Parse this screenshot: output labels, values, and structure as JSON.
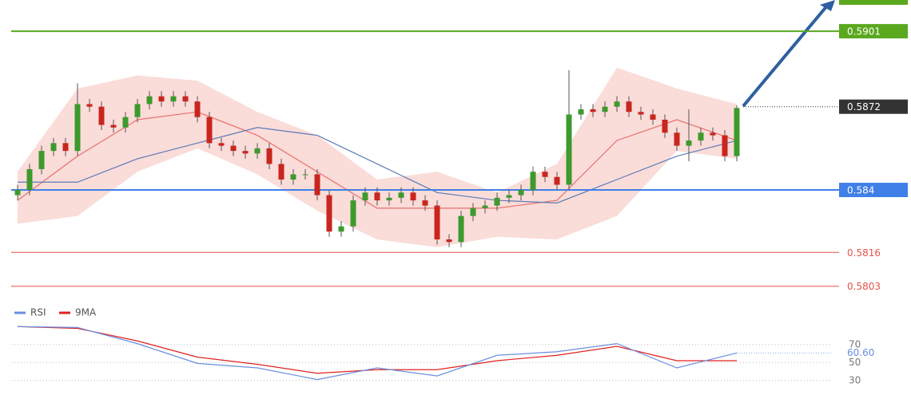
{
  "chart_data": {
    "type": "candlestick",
    "ylim": [
      0.5798,
      0.5913
    ],
    "up_color": "#3d9a2c",
    "down_color": "#c8261e",
    "wick_color": "#555555",
    "open": [
      0.5838,
      0.584,
      0.5848,
      0.5855,
      0.5858,
      0.5855,
      0.5873,
      0.5872,
      0.5865,
      0.5864,
      0.5868,
      0.5873,
      0.5876,
      0.5874,
      0.5876,
      0.5874,
      0.5868,
      0.5858,
      0.5857,
      0.5855,
      0.5854,
      0.5856,
      0.585,
      0.5844,
      0.5846,
      0.5846,
      0.5838,
      0.5824,
      0.5826,
      0.5836,
      0.5839,
      0.5836,
      0.5837,
      0.5839,
      0.5836,
      0.5834,
      0.5821,
      0.582,
      0.583,
      0.5833,
      0.5834,
      0.5837,
      0.5838,
      0.584,
      0.5847,
      0.5845,
      0.5842,
      0.5869,
      0.5871,
      0.587,
      0.5872,
      0.5874,
      0.587,
      0.5869,
      0.5867,
      0.5862,
      0.5857,
      0.5859,
      0.5862,
      0.5861,
      0.5853
    ],
    "high": [
      0.5842,
      0.585,
      0.5857,
      0.586,
      0.586,
      0.5881,
      0.5875,
      0.5874,
      0.5867,
      0.587,
      0.5875,
      0.5878,
      0.5878,
      0.5878,
      0.5878,
      0.5876,
      0.587,
      0.586,
      0.5859,
      0.5857,
      0.5858,
      0.5858,
      0.5852,
      0.5848,
      0.5848,
      0.5848,
      0.584,
      0.5828,
      0.5838,
      0.5841,
      0.5841,
      0.5839,
      0.5841,
      0.5841,
      0.5838,
      0.5836,
      0.5823,
      0.5832,
      0.5835,
      0.5836,
      0.5839,
      0.584,
      0.5842,
      0.5849,
      0.5849,
      0.5847,
      0.5886,
      0.5873,
      0.5873,
      0.5874,
      0.5876,
      0.5876,
      0.5872,
      0.5871,
      0.5869,
      0.5864,
      0.5871,
      0.5864,
      0.5864,
      0.5863,
      0.58725
    ],
    "low": [
      0.5836,
      0.5838,
      0.5846,
      0.5853,
      0.5853,
      0.5853,
      0.587,
      0.5863,
      0.5862,
      0.5862,
      0.5866,
      0.5871,
      0.5872,
      0.5872,
      0.5872,
      0.5866,
      0.5856,
      0.5855,
      0.5853,
      0.5852,
      0.5852,
      0.5848,
      0.5842,
      0.5842,
      0.5844,
      0.5836,
      0.5822,
      0.5822,
      0.5824,
      0.5834,
      0.5834,
      0.5834,
      0.5835,
      0.5834,
      0.5832,
      0.5819,
      0.5818,
      0.5818,
      0.5828,
      0.5831,
      0.5832,
      0.5835,
      0.5836,
      0.5838,
      0.5843,
      0.584,
      0.584,
      0.5867,
      0.5868,
      0.5868,
      0.587,
      0.5868,
      0.5867,
      0.5865,
      0.586,
      0.5855,
      0.5851,
      0.5857,
      0.5859,
      0.5851,
      0.5851
    ],
    "close": [
      0.584,
      0.5848,
      0.5855,
      0.5858,
      0.5855,
      0.5873,
      0.5872,
      0.5865,
      0.5864,
      0.5868,
      0.5873,
      0.5876,
      0.5874,
      0.5876,
      0.5874,
      0.5868,
      0.5858,
      0.5857,
      0.5855,
      0.5854,
      0.5856,
      0.585,
      0.5844,
      0.5846,
      0.5846,
      0.5838,
      0.5824,
      0.5826,
      0.5836,
      0.5839,
      0.5836,
      0.5837,
      0.5839,
      0.5836,
      0.5834,
      0.5821,
      0.582,
      0.583,
      0.5833,
      0.5834,
      0.5837,
      0.5838,
      0.584,
      0.5847,
      0.5845,
      0.5842,
      0.5869,
      0.5871,
      0.587,
      0.5872,
      0.5874,
      0.587,
      0.5869,
      0.5867,
      0.5862,
      0.5857,
      0.5859,
      0.5862,
      0.5861,
      0.5853,
      0.58715
    ],
    "bands": {
      "x": [
        0,
        5,
        10,
        15,
        20,
        25,
        30,
        35,
        40,
        45,
        50,
        55,
        60
      ],
      "upper": [
        0.5847,
        0.5879,
        0.5884,
        0.5882,
        0.587,
        0.5861,
        0.5844,
        0.5847,
        0.5839,
        0.585,
        0.5887,
        0.5879,
        0.5873
      ],
      "lower": [
        0.5827,
        0.583,
        0.5847,
        0.5856,
        0.5846,
        0.5832,
        0.5821,
        0.5818,
        0.5822,
        0.5821,
        0.583,
        0.5855,
        0.5852
      ],
      "middle": [
        0.5836,
        0.5853,
        0.5867,
        0.587,
        0.5861,
        0.5847,
        0.5833,
        0.5833,
        0.5833,
        0.5836,
        0.5859,
        0.5867,
        0.5859
      ],
      "ma": [
        0.5843,
        0.5843,
        0.5852,
        0.5858,
        0.5864,
        0.5861,
        0.585,
        0.5839,
        0.5836,
        0.5835,
        0.5844,
        0.5853,
        0.5859
      ],
      "fill_color": "#f9d3d0",
      "middle_color": "#e8706a",
      "ma_color": "#5a7bb5"
    },
    "levels": [
      {
        "value": 0.5901,
        "color": "#5aa81e",
        "style": "box"
      },
      {
        "value": 0.5872,
        "color": "#333333",
        "style": "current"
      },
      {
        "value": 0.584,
        "color": "#3f7fe8",
        "style": "box"
      },
      {
        "value": 0.5816,
        "color": "#e8524a",
        "style": "text"
      },
      {
        "value": 0.5803,
        "color": "#e8524a",
        "style": "text"
      }
    ],
    "rsi": {
      "ylim": [
        20,
        100
      ],
      "yticks": [
        70,
        50,
        30
      ],
      "x": [
        0,
        5,
        10,
        15,
        20,
        25,
        30,
        35,
        40,
        45,
        50,
        55,
        60
      ],
      "series": [
        {
          "name": "RSI",
          "color": "#6a8ee0",
          "values": [
            90,
            89,
            71,
            49,
            44,
            31,
            44,
            35,
            58,
            62,
            71,
            44,
            60.6
          ]
        },
        {
          "name": "9MA",
          "color": "#e02020",
          "values": [
            90,
            88,
            74,
            56,
            48,
            38,
            42,
            42,
            52,
            58,
            68,
            52,
            52
          ]
        }
      ],
      "current": {
        "value": 60.6,
        "label": "60.60"
      }
    }
  }
}
